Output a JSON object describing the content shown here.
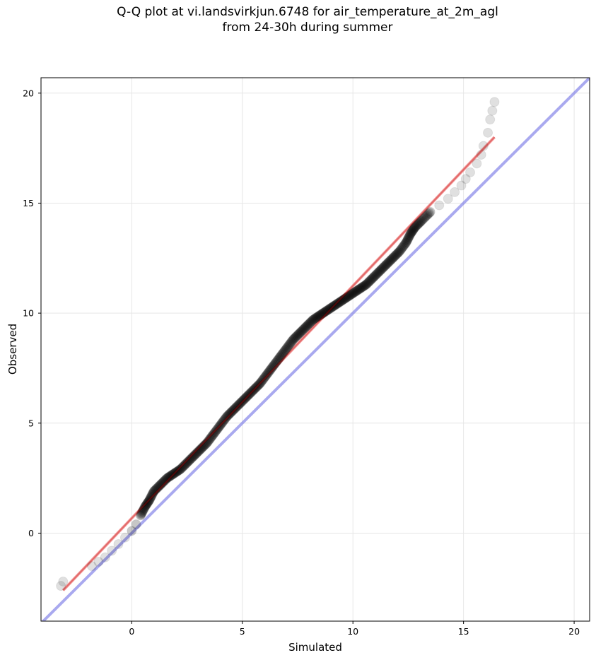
{
  "title": {
    "line1": "Q-Q plot at vi.landsvirkjun.6748 for air_temperature_at_2m_agl",
    "line2": "from 24-30h during summer"
  },
  "chart_data": {
    "type": "scatter",
    "title": "Q-Q plot at vi.landsvirkjun.6748 for air_temperature_at_2m_agl from 24-30h during summer",
    "xlabel": "Simulated",
    "ylabel": "Observed",
    "xlim": [
      -4.1,
      20.7
    ],
    "ylim": [
      -4.0,
      20.7
    ],
    "x_ticks": [
      0,
      5,
      10,
      15,
      20
    ],
    "y_ticks": [
      0,
      5,
      10,
      15,
      20
    ],
    "grid": true,
    "quantile_points": {
      "x": [
        -3.2,
        -3.1,
        -1.8,
        -1.5,
        -1.2,
        -0.9,
        -0.6,
        -0.3,
        0.0,
        0.2,
        0.4,
        0.6,
        0.8,
        1.0,
        1.3,
        1.6,
        1.9,
        2.2,
        2.5,
        2.8,
        3.1,
        3.4,
        3.7,
        4.0,
        4.3,
        4.6,
        4.9,
        5.2,
        5.5,
        5.8,
        6.1,
        6.4,
        6.7,
        7.0,
        7.3,
        7.6,
        7.9,
        8.2,
        8.5,
        8.8,
        9.1,
        9.4,
        9.7,
        10.0,
        10.3,
        10.6,
        10.9,
        11.2,
        11.5,
        11.8,
        12.1,
        12.4,
        12.6,
        12.8,
        13.1,
        13.5,
        13.9,
        14.3,
        14.6,
        14.9,
        15.1,
        15.3,
        15.6,
        15.8,
        15.9,
        16.1,
        16.2,
        16.3,
        16.4
      ],
      "y": [
        -2.4,
        -2.2,
        -1.5,
        -1.3,
        -1.1,
        -0.8,
        -0.5,
        -0.2,
        0.1,
        0.4,
        0.8,
        1.2,
        1.5,
        1.9,
        2.2,
        2.5,
        2.7,
        2.9,
        3.2,
        3.5,
        3.8,
        4.1,
        4.5,
        4.9,
        5.3,
        5.6,
        5.9,
        6.2,
        6.5,
        6.8,
        7.2,
        7.6,
        8.0,
        8.4,
        8.8,
        9.1,
        9.4,
        9.7,
        9.9,
        10.1,
        10.3,
        10.5,
        10.7,
        10.9,
        11.1,
        11.3,
        11.6,
        11.9,
        12.2,
        12.5,
        12.8,
        13.2,
        13.6,
        13.9,
        14.2,
        14.6,
        14.9,
        15.2,
        15.5,
        15.8,
        16.1,
        16.4,
        16.8,
        17.2,
        17.6,
        18.2,
        18.8,
        19.2,
        19.6
      ]
    },
    "regression_line": {
      "x": [
        -3.1,
        16.4
      ],
      "y": [
        -2.6,
        18.0
      ],
      "color": "#f08080"
    },
    "identity_line": {
      "x": [
        -4.1,
        20.7
      ],
      "y": [
        -4.1,
        20.7
      ],
      "color": "#7b7be6"
    },
    "point_color": "#000000"
  }
}
